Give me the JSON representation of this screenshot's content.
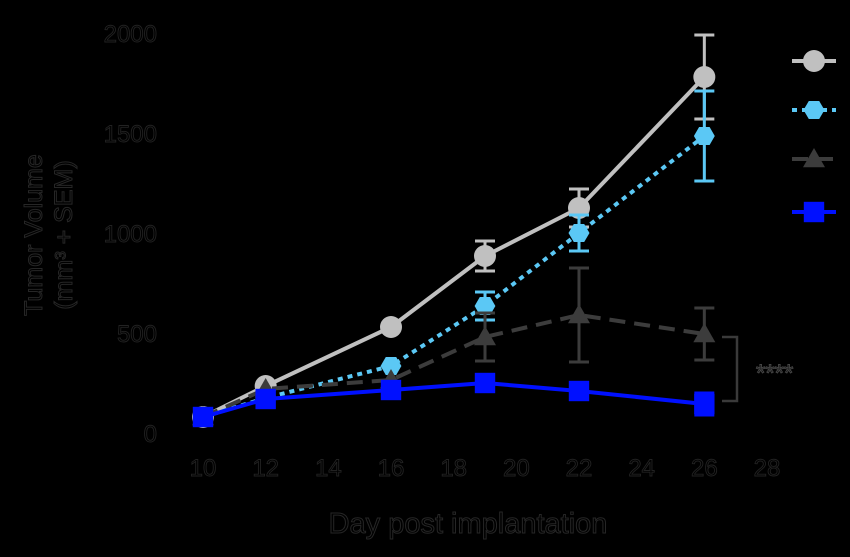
{
  "chart_data": {
    "type": "line",
    "title": "",
    "xlabel": "Day post  implantation",
    "ylabel_line1": "Tumor Volume",
    "ylabel_line2": "(mm³ + SEM)",
    "xlim": [
      10,
      28
    ],
    "ylim": [
      0,
      2000
    ],
    "xticks": [
      "10",
      "12",
      "14",
      "16",
      "18",
      "20",
      "22",
      "24",
      "26",
      "28"
    ],
    "yticks": [
      "0",
      "500",
      "1000",
      "1500",
      "2000"
    ],
    "grid": false,
    "legend_position": "right",
    "significance_label": "****",
    "series": [
      {
        "marker": "circle",
        "color": "#c0c0c0",
        "dash": "solid",
        "points": [
          {
            "x": 10,
            "y": 80
          },
          {
            "x": 12,
            "y": 235
          },
          {
            "x": 16,
            "y": 530
          },
          {
            "x": 19,
            "y": 885,
            "err": 75
          },
          {
            "x": 22,
            "y": 1125,
            "err": 95
          },
          {
            "x": 26,
            "y": 1780,
            "err": 210
          }
        ]
      },
      {
        "marker": "hexagon",
        "color": "#5bc8f5",
        "dash": "dotted",
        "points": [
          {
            "x": 10,
            "y": 80
          },
          {
            "x": 12,
            "y": 175
          },
          {
            "x": 16,
            "y": 335
          },
          {
            "x": 19,
            "y": 635,
            "err": 70
          },
          {
            "x": 22,
            "y": 1000,
            "err": 90
          },
          {
            "x": 26,
            "y": 1485,
            "err": 225
          }
        ]
      },
      {
        "marker": "triangle",
        "color": "#3c3c3c",
        "dash": "dashed",
        "points": [
          {
            "x": 10,
            "y": 80
          },
          {
            "x": 12,
            "y": 220
          },
          {
            "x": 16,
            "y": 265
          },
          {
            "x": 19,
            "y": 480,
            "err": 120
          },
          {
            "x": 22,
            "y": 590,
            "err": 235
          },
          {
            "x": 26,
            "y": 495,
            "err": 130
          }
        ]
      },
      {
        "marker": "square",
        "color": "#0010ff",
        "dash": "solid",
        "points": [
          {
            "x": 10,
            "y": 80
          },
          {
            "x": 12,
            "y": 170
          },
          {
            "x": 16,
            "y": 215
          },
          {
            "x": 19,
            "y": 250
          },
          {
            "x": 22,
            "y": 210
          },
          {
            "x": 26,
            "y": 145,
            "err": 55
          }
        ]
      }
    ]
  }
}
